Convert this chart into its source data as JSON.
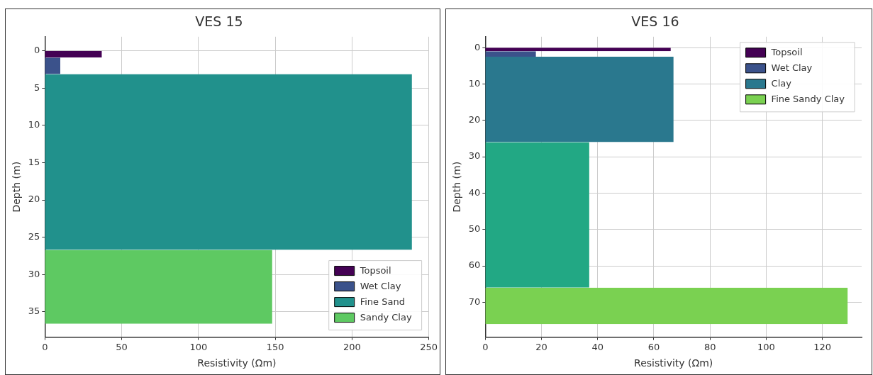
{
  "chart_data": [
    {
      "type": "area",
      "orientation": "horizontal",
      "title": "VES 15",
      "xlabel": "Resistivity (Ωm)",
      "ylabel": "Depth (m)",
      "xlim": [
        0,
        250
      ],
      "xticks": [
        0,
        50,
        100,
        150,
        200,
        250
      ],
      "ylim": [
        38.4,
        -1.9
      ],
      "yticks": [
        0,
        5,
        10,
        15,
        20,
        25,
        30,
        35
      ],
      "grid": true,
      "legend": "bottom right",
      "series": [
        {
          "name": "Topsoil",
          "color": "#440154",
          "x": [
            0,
            0.9
          ],
          "values": [
            37,
            37
          ]
        },
        {
          "name": "Wet Clay",
          "color": "#3b528b",
          "x": [
            0.9,
            3.1
          ],
          "values": [
            10,
            10
          ]
        },
        {
          "name": "Fine Sand",
          "color": "#21918c",
          "x": [
            3.1,
            26.7
          ],
          "values": [
            239,
            239
          ]
        },
        {
          "name": "Sandy Clay",
          "color": "#5ec962",
          "x": [
            26.7,
            36.6
          ],
          "values": [
            148,
            148
          ]
        }
      ]
    },
    {
      "type": "area",
      "orientation": "horizontal",
      "title": "VES 16",
      "xlabel": "Resistivity (Ωm)",
      "ylabel": "Depth (m)",
      "xlim": [
        0,
        134
      ],
      "xticks": [
        0,
        20,
        40,
        60,
        80,
        100,
        120
      ],
      "ylim": [
        79.6,
        -3
      ],
      "yticks": [
        0,
        10,
        20,
        30,
        40,
        50,
        60,
        70
      ],
      "grid": true,
      "legend": "top right",
      "series": [
        {
          "name": "Topsoil",
          "color": "#440154",
          "x": [
            0,
            1
          ],
          "values": [
            66,
            66
          ]
        },
        {
          "name": "Wet Clay",
          "color": "#3b528b",
          "x": [
            1,
            2.5
          ],
          "values": [
            18,
            18
          ]
        },
        {
          "name": "Clay",
          "color": "#2a788e",
          "x": [
            2.5,
            26
          ],
          "values": [
            67,
            67
          ]
        },
        {
          "color": "#22a884",
          "x": [
            26,
            66
          ],
          "values": [
            37,
            37
          ]
        },
        {
          "name": "Fine Sandy Clay",
          "color": "#7ad151",
          "x": [
            66,
            76
          ],
          "values": [
            129,
            129
          ]
        }
      ]
    }
  ]
}
